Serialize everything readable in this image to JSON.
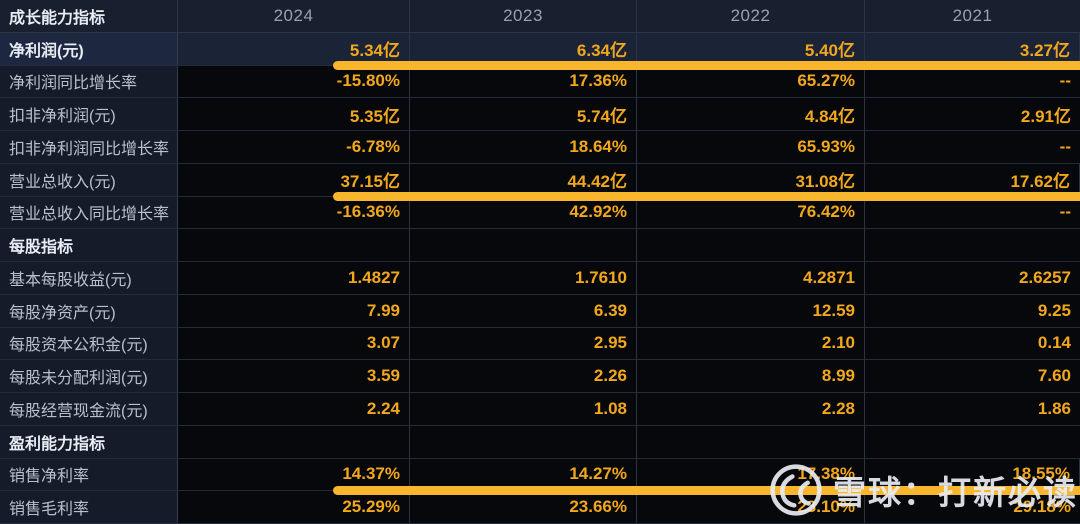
{
  "table": {
    "corner_label": "成长能力指标",
    "columns": [
      "2024",
      "2023",
      "2022",
      "2021"
    ],
    "rows": [
      {
        "label": "净利润(元)",
        "type": "highlight",
        "bar": true,
        "values": [
          "5.34亿",
          "6.34亿",
          "5.40亿",
          "3.27亿"
        ]
      },
      {
        "label": "净利润同比增长率",
        "type": "normal",
        "bar": false,
        "values": [
          "-15.80%",
          "17.36%",
          "65.27%",
          "--"
        ]
      },
      {
        "label": "扣非净利润(元)",
        "type": "normal",
        "bar": false,
        "values": [
          "5.35亿",
          "5.74亿",
          "4.84亿",
          "2.91亿"
        ]
      },
      {
        "label": "扣非净利润同比增长率",
        "type": "normal",
        "bar": false,
        "values": [
          "-6.78%",
          "18.64%",
          "65.93%",
          "--"
        ]
      },
      {
        "label": "营业总收入(元)",
        "type": "normal",
        "bar": true,
        "values": [
          "37.15亿",
          "44.42亿",
          "31.08亿",
          "17.62亿"
        ]
      },
      {
        "label": "营业总收入同比增长率",
        "type": "normal",
        "bar": false,
        "values": [
          "-16.36%",
          "42.92%",
          "76.42%",
          "--"
        ]
      },
      {
        "label": "每股指标",
        "type": "section",
        "bar": false,
        "values": [
          "",
          "",
          "",
          ""
        ]
      },
      {
        "label": "基本每股收益(元)",
        "type": "normal",
        "bar": false,
        "values": [
          "1.4827",
          "1.7610",
          "4.2871",
          "2.6257"
        ]
      },
      {
        "label": "每股净资产(元)",
        "type": "normal",
        "bar": false,
        "values": [
          "7.99",
          "6.39",
          "12.59",
          "9.25"
        ]
      },
      {
        "label": "每股资本公积金(元)",
        "type": "normal",
        "bar": false,
        "values": [
          "3.07",
          "2.95",
          "2.10",
          "0.14"
        ]
      },
      {
        "label": "每股未分配利润(元)",
        "type": "normal",
        "bar": false,
        "values": [
          "3.59",
          "2.26",
          "8.99",
          "7.60"
        ]
      },
      {
        "label": "每股经营现金流(元)",
        "type": "normal",
        "bar": false,
        "values": [
          "2.24",
          "1.08",
          "2.28",
          "1.86"
        ]
      },
      {
        "label": "盈利能力指标",
        "type": "section",
        "bar": false,
        "values": [
          "",
          "",
          "",
          ""
        ]
      },
      {
        "label": "销售净利率",
        "type": "normal",
        "bar": true,
        "values": [
          "14.37%",
          "14.27%",
          "17.38%",
          "18.55%"
        ]
      },
      {
        "label": "销售毛利率",
        "type": "normal",
        "bar": false,
        "values": [
          "25.29%",
          "23.66%",
          "23.10%",
          "29.18%"
        ]
      }
    ]
  },
  "watermark": {
    "text": "雪球：打新必读",
    "logo": "xueqiu-snowball-logo"
  },
  "colors": {
    "value_orange": "#F2A71D",
    "bar_orange": "#F8B62D",
    "header_bg": "#18202F",
    "label_bg": "#151B29",
    "highlight_bg": "#1B2337",
    "cell_bg": "#06080B"
  }
}
